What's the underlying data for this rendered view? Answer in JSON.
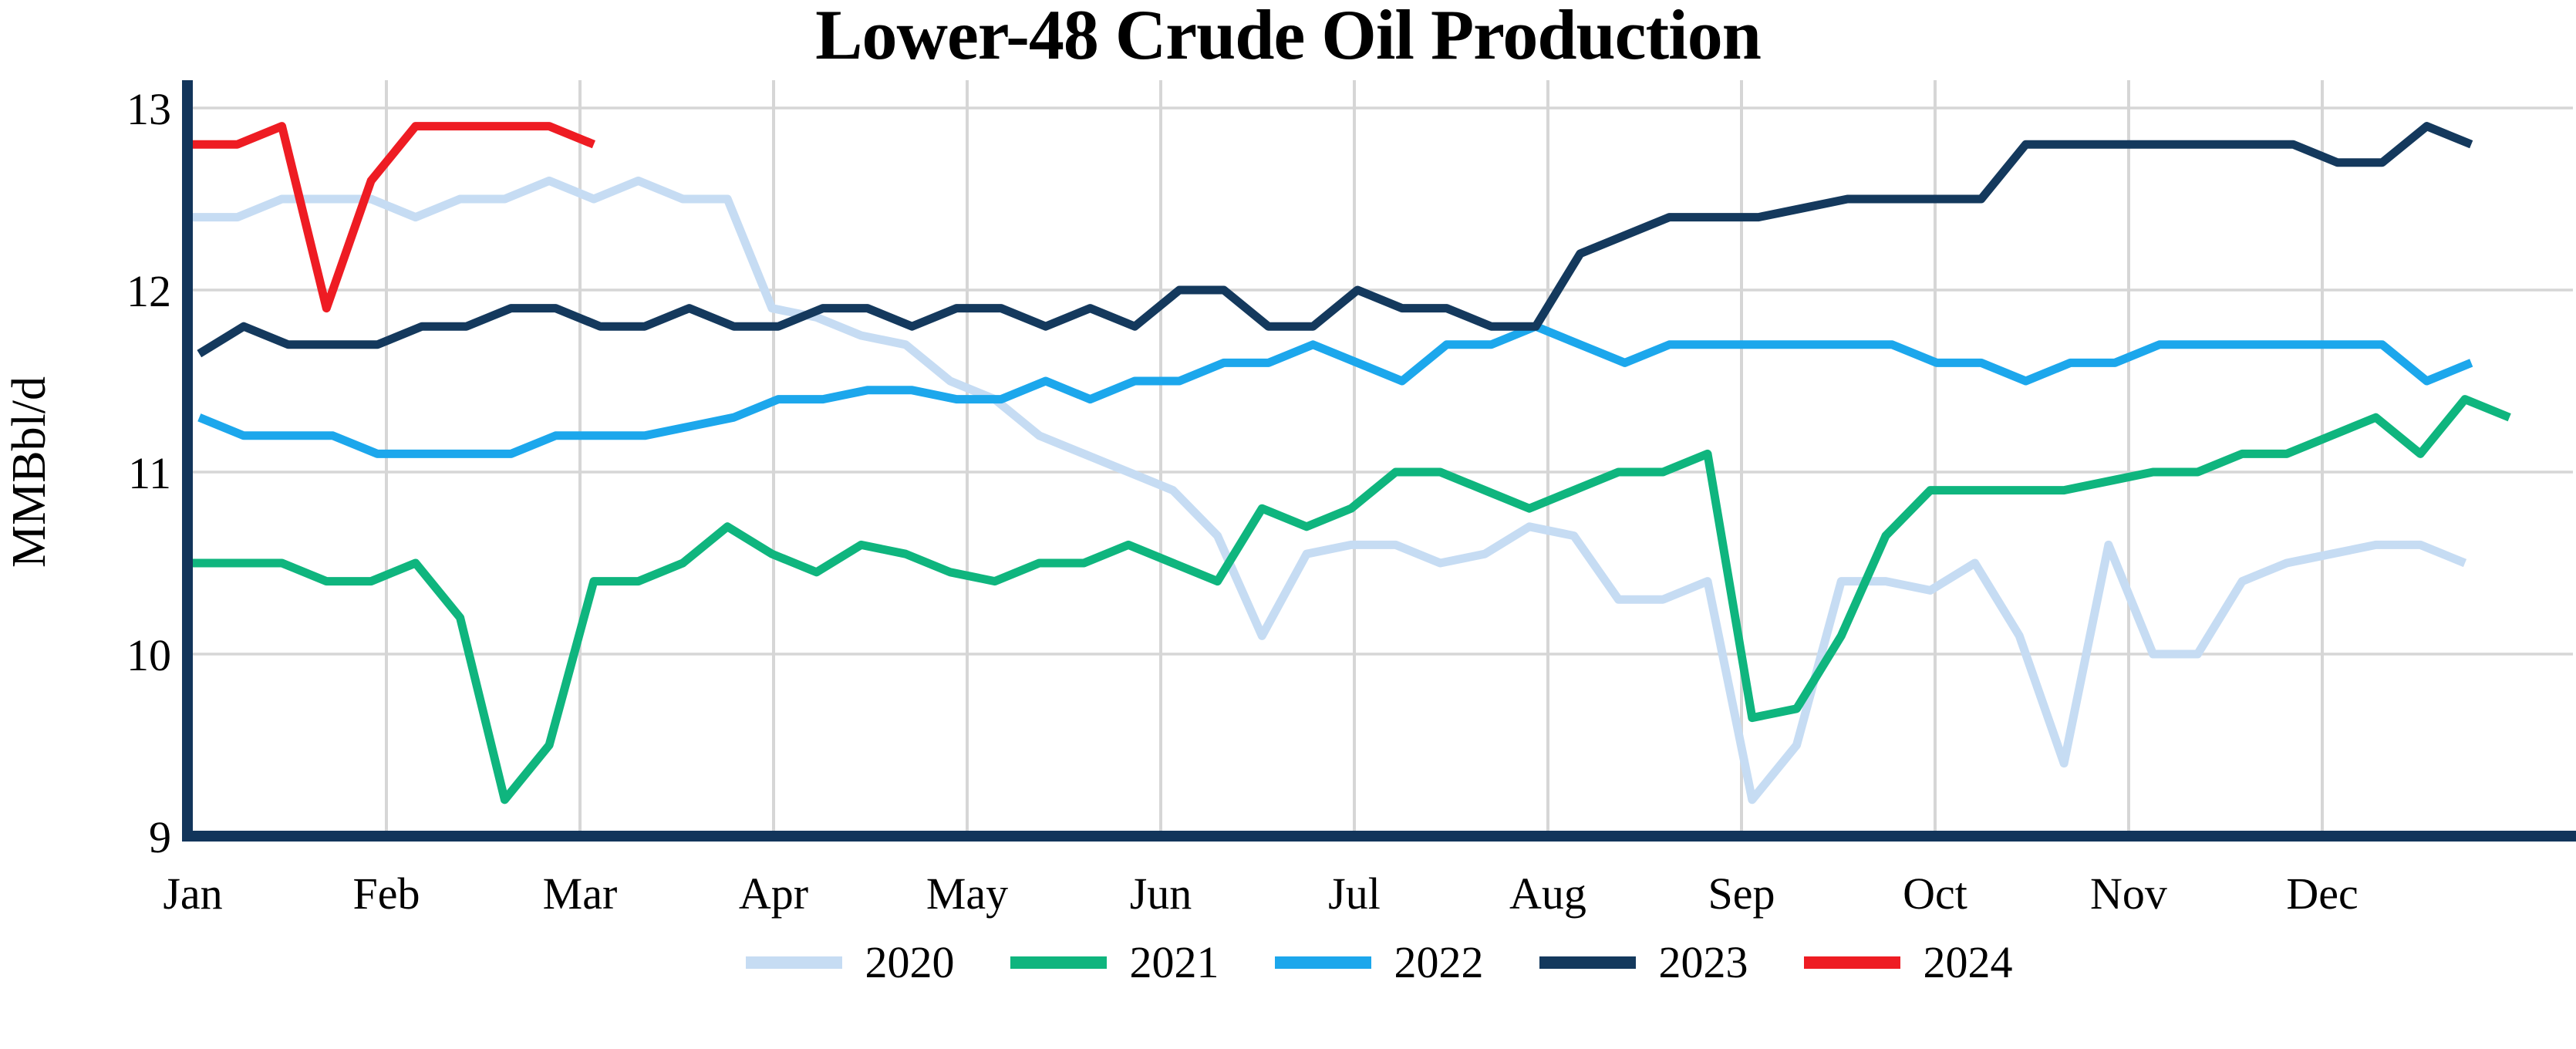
{
  "title": "Lower-48 Crude Oil Production",
  "y_axis": {
    "label": "MMBbl/d",
    "ticks": [
      "13",
      "12",
      "11",
      "10",
      "9"
    ]
  },
  "x_axis": {
    "months": [
      "Jan",
      "Feb",
      "Mar",
      "Apr",
      "May",
      "Jun",
      "Jul",
      "Aug",
      "Sep",
      "Oct",
      "Nov",
      "Dec"
    ]
  },
  "legend": {
    "entries": [
      "2020",
      "2021",
      "2022",
      "2023",
      "2024"
    ]
  },
  "colors": {
    "grid": "#D6D6D6",
    "axis_spine": "#12355B",
    "series_2020": "#C6DCF3",
    "series_2021": "#0FB57E",
    "series_2022": "#1CA7EC",
    "series_2023": "#14395D",
    "series_2024": "#EE1C23"
  },
  "chart_data": {
    "type": "line",
    "title": "Lower-48 Crude Oil Production",
    "xlabel": "",
    "ylabel": "MMBbl/d",
    "ylim": [
      9,
      13
    ],
    "xlim_months": [
      "Jan",
      "Dec"
    ],
    "grid": true,
    "legend_position": "bottom",
    "x_unit": "weekly values; x = day-of-year of each weekly point",
    "series": [
      {
        "name": "2020",
        "color": "#C6DCF3",
        "start_day": 1,
        "values": [
          12.4,
          12.4,
          12.5,
          12.5,
          12.5,
          12.4,
          12.5,
          12.5,
          12.6,
          12.5,
          12.6,
          12.5,
          12.5,
          11.9,
          11.85,
          11.75,
          11.7,
          11.5,
          11.4,
          11.2,
          11.1,
          11.0,
          10.9,
          10.65,
          10.1,
          10.55,
          10.6,
          10.6,
          10.5,
          10.55,
          10.7,
          10.65,
          10.3,
          10.3,
          10.4,
          9.2,
          9.5,
          10.4,
          10.4,
          10.35,
          10.5,
          10.1,
          9.4,
          10.6,
          10.0,
          10.0,
          10.4,
          10.5,
          10.55,
          10.6,
          10.6,
          10.5
        ]
      },
      {
        "name": "2021",
        "color": "#0FB57E",
        "start_day": 1,
        "values": [
          10.5,
          10.5,
          10.5,
          10.4,
          10.4,
          10.5,
          10.2,
          9.2,
          9.5,
          10.4,
          10.4,
          10.5,
          10.7,
          10.55,
          10.45,
          10.6,
          10.55,
          10.45,
          10.4,
          10.5,
          10.5,
          10.6,
          10.5,
          10.4,
          10.8,
          10.7,
          10.8,
          11.0,
          11.0,
          10.9,
          10.8,
          10.9,
          11.0,
          11.0,
          11.1,
          9.65,
          9.7,
          10.1,
          10.65,
          10.9,
          10.9,
          10.9,
          10.9,
          10.95,
          11.0,
          11.0,
          11.1,
          11.1,
          11.2,
          11.3,
          11.1,
          11.4,
          11.3
        ]
      },
      {
        "name": "2022",
        "color": "#1CA7EC",
        "start_day": 2,
        "values": [
          11.3,
          11.2,
          11.2,
          11.2,
          11.1,
          11.1,
          11.1,
          11.1,
          11.2,
          11.2,
          11.2,
          11.25,
          11.3,
          11.4,
          11.4,
          11.45,
          11.45,
          11.4,
          11.4,
          11.5,
          11.4,
          11.5,
          11.5,
          11.6,
          11.6,
          11.7,
          11.6,
          11.5,
          11.7,
          11.7,
          11.8,
          11.7,
          11.6,
          11.7,
          11.7,
          11.7,
          11.7,
          11.7,
          11.7,
          11.6,
          11.6,
          11.5,
          11.6,
          11.6,
          11.7,
          11.7,
          11.7,
          11.7,
          11.7,
          11.7,
          11.5,
          11.6
        ]
      },
      {
        "name": "2023",
        "color": "#14395D",
        "start_day": 2,
        "values": [
          11.65,
          11.8,
          11.7,
          11.7,
          11.7,
          11.8,
          11.8,
          11.9,
          11.9,
          11.8,
          11.8,
          11.9,
          11.8,
          11.8,
          11.9,
          11.9,
          11.8,
          11.9,
          11.9,
          11.8,
          11.9,
          11.8,
          12.0,
          12.0,
          11.8,
          11.8,
          12.0,
          11.9,
          11.9,
          11.8,
          11.8,
          12.2,
          12.3,
          12.4,
          12.4,
          12.4,
          12.45,
          12.5,
          12.5,
          12.5,
          12.5,
          12.8,
          12.8,
          12.8,
          12.8,
          12.8,
          12.8,
          12.8,
          12.7,
          12.7,
          12.9,
          12.8
        ]
      },
      {
        "name": "2024",
        "color": "#EE1C23",
        "start_day": 1,
        "values": [
          12.8,
          12.8,
          12.9,
          11.9,
          12.6,
          12.9,
          12.9,
          12.9,
          12.9,
          12.8
        ]
      }
    ]
  }
}
